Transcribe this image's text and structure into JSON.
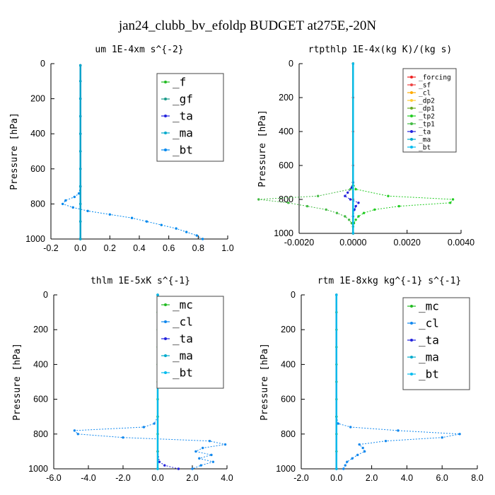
{
  "title": "jan24_clubb_bv_efoldp  BUDGET at275E,-20N",
  "chart_data": [
    {
      "type": "line",
      "title": "um  1E-4xm s^{-2}",
      "ylabel": "Pressure [hPa]",
      "xlim": [
        -0.2,
        1.0
      ],
      "ylim": [
        1000,
        0
      ],
      "xticks": [
        "-0.2",
        "0.0",
        "0.2",
        "0.4",
        "0.6",
        "0.8",
        "1.0"
      ],
      "yticks": [
        "0",
        "200",
        "400",
        "600",
        "800",
        "1000"
      ],
      "legend_position": "top-right",
      "series": [
        {
          "name": "_f",
          "color": "#22bb22",
          "p": [
            10,
            100,
            200,
            300,
            400,
            500,
            600,
            700,
            800,
            900,
            1000
          ],
          "x": [
            0,
            0,
            0,
            0,
            0,
            0,
            0,
            0,
            0,
            0,
            0
          ]
        },
        {
          "name": "_gf",
          "color": "#1a9a8a",
          "p": [
            10,
            100,
            200,
            300,
            400,
            500,
            600,
            700,
            800,
            900,
            1000
          ],
          "x": [
            0,
            0,
            0,
            0,
            0,
            0,
            0,
            0,
            0,
            0,
            0
          ]
        },
        {
          "name": "_ta",
          "color": "#2222dd",
          "p": [
            10,
            100,
            200,
            300,
            400,
            500,
            600,
            700,
            800,
            900,
            1000
          ],
          "x": [
            0,
            0,
            0,
            0,
            0,
            0,
            0,
            0,
            0,
            0,
            0
          ]
        },
        {
          "name": "_ma",
          "color": "#00aacc",
          "p": [
            10,
            100,
            200,
            300,
            400,
            500,
            600,
            700,
            800,
            900,
            1000
          ],
          "x": [
            0,
            0,
            0,
            0,
            0,
            0,
            0,
            0,
            0,
            0,
            0
          ]
        },
        {
          "name": "_bt",
          "color": "#0088ee",
          "p": [
            10,
            200,
            400,
            600,
            700,
            740,
            760,
            780,
            800,
            820,
            840,
            860,
            880,
            900,
            920,
            940,
            960,
            980,
            1000
          ],
          "x": [
            0.0,
            0.0,
            0.0,
            0.0,
            0.0,
            -0.01,
            -0.04,
            -0.1,
            -0.12,
            -0.05,
            0.05,
            0.2,
            0.35,
            0.45,
            0.55,
            0.65,
            0.72,
            0.79,
            0.83
          ]
        }
      ]
    },
    {
      "type": "line",
      "title": "rtpthlp  1E-4x(kg K)/(kg s)",
      "ylabel": "Pressure [hPa]",
      "xlim": [
        -0.002,
        0.004
      ],
      "ylim": [
        1000,
        0
      ],
      "xticks": [
        "-0.0020",
        "0.0000",
        "0.0020",
        "0.0040"
      ],
      "yticks": [
        "0",
        "200",
        "400",
        "600",
        "800",
        "1000"
      ],
      "legend_position": "top-right",
      "series": [
        {
          "name": "_forcing",
          "color": "#ee2222",
          "p": [
            0,
            200,
            400,
            600,
            800,
            1000
          ],
          "x": [
            0,
            0,
            0,
            0,
            0,
            0
          ]
        },
        {
          "name": "_sf",
          "color": "#ee4444",
          "p": [
            0,
            1000
          ],
          "x": [
            0,
            0
          ]
        },
        {
          "name": "_cl",
          "color": "#ffaa00",
          "p": [
            0,
            1000
          ],
          "x": [
            0,
            0
          ]
        },
        {
          "name": "_dp2",
          "color": "#ffcc33",
          "p": [
            0,
            1000
          ],
          "x": [
            0,
            0
          ]
        },
        {
          "name": "_dp1",
          "color": "#66aa22",
          "p": [
            0,
            1000
          ],
          "x": [
            0,
            0
          ]
        },
        {
          "name": "_tp2",
          "color": "#22cc22",
          "p": [
            0,
            700,
            740,
            780,
            800,
            820,
            840,
            860,
            880,
            900,
            920,
            940,
            960,
            1000
          ],
          "x": [
            0,
            0,
            0.0001,
            0.0013,
            0.0037,
            0.0036,
            0.0017,
            0.0008,
            0.0004,
            0.0002,
            0.0001,
            3e-05,
            0,
            0
          ]
        },
        {
          "name": "_tp1",
          "color": "#44bb44",
          "p": [
            0,
            700,
            740,
            780,
            800,
            820,
            840,
            860,
            880,
            900,
            920,
            940,
            960,
            1000
          ],
          "x": [
            0,
            0,
            -0.0001,
            -0.0013,
            -0.0035,
            -0.0024,
            -0.0017,
            -0.001,
            -0.0006,
            -0.0003,
            -0.00015,
            -5e-05,
            0,
            0
          ]
        },
        {
          "name": "_ta",
          "color": "#2222dd",
          "p": [
            0,
            700,
            730,
            760,
            780,
            800,
            820,
            840,
            860,
            900,
            1000
          ],
          "x": [
            0,
            0,
            -5e-05,
            -0.0002,
            -0.0003,
            -0.0001,
            0.0002,
            0.0001,
            5e-05,
            0,
            0
          ]
        },
        {
          "name": "_ma",
          "color": "#00aacc",
          "p": [
            0,
            1000
          ],
          "x": [
            0,
            0
          ]
        },
        {
          "name": "_bt",
          "color": "#00bbee",
          "p": [
            0,
            1000
          ],
          "x": [
            0,
            0
          ]
        }
      ]
    },
    {
      "type": "line",
      "title": "thlm  1E-5xK s^{-1}",
      "ylabel": "Pressure [hPa]",
      "xlim": [
        -6.0,
        4.0
      ],
      "ylim": [
        1000,
        0
      ],
      "xticks": [
        "-6.0",
        "-4.0",
        "-2.0",
        "0.0",
        "2.0",
        "4.0"
      ],
      "yticks": [
        "0",
        "200",
        "400",
        "600",
        "800",
        "1000"
      ],
      "legend_position": "top-right",
      "series": [
        {
          "name": "_mc",
          "color": "#22bb22",
          "p": [
            0,
            100,
            200,
            300,
            400,
            500,
            600,
            700,
            800,
            900,
            1000
          ],
          "x": [
            0,
            0,
            0,
            0,
            0,
            0,
            0,
            0,
            0,
            0,
            0
          ]
        },
        {
          "name": "_cl",
          "color": "#1188ee",
          "p": [
            0,
            700,
            740,
            760,
            780,
            800,
            820,
            840,
            860,
            880,
            900,
            920,
            940,
            960,
            980,
            1000
          ],
          "x": [
            0,
            0,
            -0.2,
            -0.8,
            -4.8,
            -4.6,
            -2.0,
            3.0,
            3.9,
            2.6,
            2.2,
            3.1,
            2.4,
            3.2,
            2.5,
            2.0
          ]
        },
        {
          "name": "_ta",
          "color": "#2222dd",
          "p": [
            0,
            900,
            960,
            980,
            1000
          ],
          "x": [
            0,
            0,
            0.1,
            0.4,
            1.2
          ]
        },
        {
          "name": "_ma",
          "color": "#00aacc",
          "p": [
            0,
            1000
          ],
          "x": [
            0,
            0
          ]
        },
        {
          "name": "_bt",
          "color": "#00bbee",
          "p": [
            0,
            1000
          ],
          "x": [
            0,
            0
          ]
        }
      ]
    },
    {
      "type": "line",
      "title": "rtm  1E-8xkg kg^{-1} s^{-1}",
      "ylabel": "Pressure [hPa]",
      "xlim": [
        -2.0,
        8.0
      ],
      "ylim": [
        1000,
        0
      ],
      "xticks": [
        "-2.0",
        "0.0",
        "2.0",
        "4.0",
        "6.0",
        "8.0"
      ],
      "yticks": [
        "0",
        "200",
        "400",
        "600",
        "800",
        "1000"
      ],
      "legend_position": "top-right",
      "series": [
        {
          "name": "_mc",
          "color": "#22bb22",
          "p": [
            0,
            100,
            200,
            300,
            400,
            500,
            600,
            700,
            800,
            900,
            1000
          ],
          "x": [
            0,
            0,
            0,
            0,
            0,
            0,
            0,
            0,
            0,
            0,
            0
          ]
        },
        {
          "name": "_cl",
          "color": "#1188ee",
          "p": [
            0,
            700,
            740,
            760,
            780,
            800,
            820,
            840,
            860,
            880,
            900,
            920,
            940,
            960,
            980,
            1000
          ],
          "x": [
            0,
            0,
            0.1,
            0.8,
            3.5,
            7.0,
            6.0,
            2.8,
            1.3,
            1.5,
            1.6,
            1.2,
            0.9,
            0.6,
            0.5,
            0.4
          ]
        },
        {
          "name": "_ta",
          "color": "#2222dd",
          "p": [
            0,
            1000
          ],
          "x": [
            0,
            0
          ]
        },
        {
          "name": "_ma",
          "color": "#00aacc",
          "p": [
            0,
            1000
          ],
          "x": [
            0,
            0
          ]
        },
        {
          "name": "_bt",
          "color": "#00bbee",
          "p": [
            0,
            1000
          ],
          "x": [
            0,
            0
          ]
        }
      ]
    }
  ]
}
